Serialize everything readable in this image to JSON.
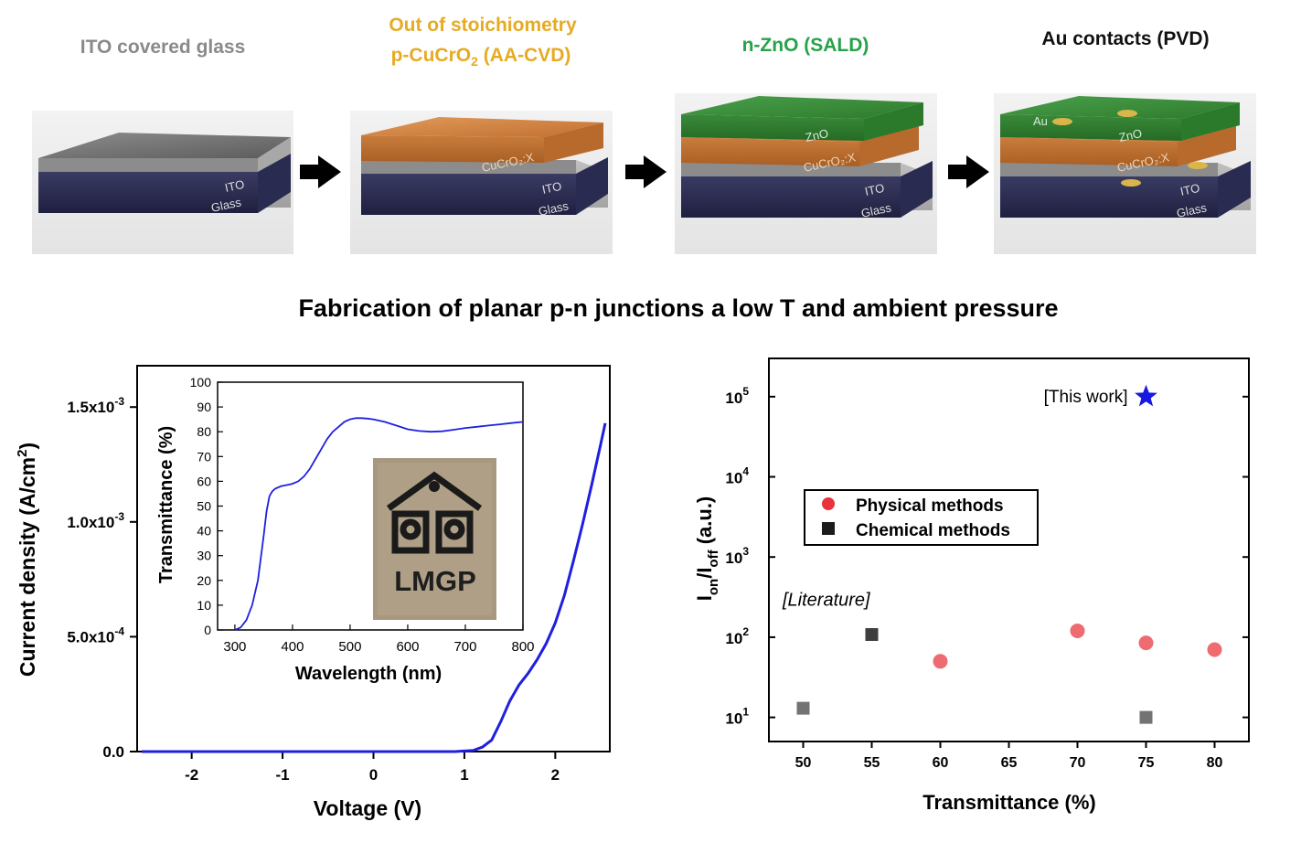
{
  "colors": {
    "ito_gray": "#8a8a8a",
    "cucro2_orange": "#e6ab24",
    "zno_green": "#27a24a",
    "au_black": "#111111",
    "curve_blue": "#1f1fe0",
    "star_blue": "#1818e0",
    "physical_red": "#e8323c",
    "chemical_square": "#1c1c1c",
    "literature_band_top": "#c9d3e7",
    "literature_band_bottom": "#ffffff"
  },
  "steps": [
    {
      "title_line1": "ITO covered glass",
      "title_line2": "",
      "layers": [
        "ITO",
        "Glass"
      ]
    },
    {
      "title_line1": "Out of stoichiometry",
      "title_line2": "p-CuCrO",
      "title_sub": "2",
      "title_tail": " (AA-CVD)",
      "layers": [
        "CuCrO₂:X",
        "ITO",
        "Glass"
      ]
    },
    {
      "title_line1": "n-ZnO (SALD)",
      "title_line2": "",
      "layers": [
        "ZnO",
        "CuCrO₂:X",
        "ITO",
        "Glass"
      ]
    },
    {
      "title_line1": "Au contacts (PVD)",
      "title_line2": "",
      "layers": [
        "Au",
        "ZnO",
        "CuCrO₂:X",
        "ITO",
        "Glass"
      ]
    }
  ],
  "caption": "Fabrication of planar p-n junctions a low T and ambient pressure",
  "chart_data": [
    {
      "type": "line",
      "xlabel": "Voltage (V)",
      "ylabel_main": "Current density (A/cm",
      "ylabel_sup": "2",
      "ylabel_tail": ")",
      "xlim": [
        -2.6,
        2.6
      ],
      "ylim": [
        0,
        0.00168
      ],
      "x_ticks": [
        -2,
        -1,
        0,
        1,
        2
      ],
      "x_tick_labels": [
        "-2",
        "-1",
        "0",
        "1",
        "2"
      ],
      "y_ticks": [
        0,
        0.0005,
        0.001,
        0.0015
      ],
      "y_tick_labels": [
        {
          "mant": "0.0",
          "exp": ""
        },
        {
          "mant": "5.0x10",
          "exp": "-4"
        },
        {
          "mant": "1.0x10",
          "exp": "-3"
        },
        {
          "mant": "1.5x10",
          "exp": "-3"
        }
      ],
      "series": [
        {
          "x": [
            -2.55,
            -1.5,
            -0.5,
            0.5,
            0.9,
            1.1,
            1.2,
            1.3,
            1.4,
            1.5,
            1.6,
            1.7,
            1.8,
            1.9,
            2.0,
            2.1,
            2.2,
            2.3,
            2.4,
            2.5,
            2.55
          ],
          "y": [
            0,
            0,
            0,
            0,
            0,
            5e-06,
            2e-05,
            5e-05,
            0.00013,
            0.00022,
            0.00029,
            0.00034,
            0.0004,
            0.00047,
            0.00056,
            0.00068,
            0.00083,
            0.00099,
            0.00116,
            0.00134,
            0.00143
          ]
        }
      ]
    },
    {
      "type": "line",
      "xlabel": "Wavelength (nm)",
      "ylabel": "Transmittance (%)",
      "xlim": [
        270,
        800
      ],
      "ylim": [
        0,
        100
      ],
      "x_ticks": [
        300,
        400,
        500,
        600,
        700,
        800
      ],
      "x_tick_labels": [
        "300",
        "400",
        "500",
        "600",
        "700",
        "800"
      ],
      "y_ticks": [
        0,
        10,
        20,
        30,
        40,
        50,
        60,
        70,
        80,
        90,
        100
      ],
      "y_tick_labels": [
        "0",
        "10",
        "20",
        "30",
        "40",
        "50",
        "60",
        "70",
        "80",
        "90",
        "100"
      ],
      "series": [
        {
          "x": [
            300,
            310,
            320,
            330,
            340,
            350,
            355,
            360,
            365,
            370,
            380,
            390,
            400,
            410,
            420,
            430,
            440,
            450,
            460,
            470,
            480,
            490,
            500,
            510,
            520,
            530,
            540,
            560,
            580,
            600,
            620,
            640,
            660,
            680,
            700,
            720,
            740,
            760,
            780,
            800
          ],
          "y": [
            0,
            1,
            4,
            10,
            20,
            38,
            48,
            54,
            56,
            57,
            58,
            58.5,
            59,
            60,
            62,
            65,
            69,
            73,
            77,
            80,
            82,
            84,
            85,
            85.5,
            85.5,
            85.3,
            85,
            84,
            82.5,
            81,
            80.3,
            80,
            80.2,
            80.8,
            81.5,
            82,
            82.5,
            83,
            83.5,
            84
          ]
        }
      ],
      "photo_label": "LMGP"
    },
    {
      "type": "scatter",
      "xlabel": "Transmittance (%)",
      "ylabel_main": "I",
      "ylabel_on": "on",
      "ylabel_slash": "/I",
      "ylabel_off": "off",
      "ylabel_tail": " (a.u.)",
      "y_scale": "log",
      "xlim": [
        47.5,
        82.5
      ],
      "ylim": [
        5,
        300000
      ],
      "x_ticks": [
        50,
        55,
        60,
        65,
        70,
        75,
        80
      ],
      "x_tick_labels": [
        "50",
        "55",
        "60",
        "65",
        "70",
        "75",
        "80"
      ],
      "y_ticks": [
        10,
        100,
        1000,
        10000,
        100000
      ],
      "y_tick_labels": [
        {
          "base": "10",
          "exp": "1"
        },
        {
          "base": "10",
          "exp": "2"
        },
        {
          "base": "10",
          "exp": "3"
        },
        {
          "base": "10",
          "exp": "4"
        },
        {
          "base": "10",
          "exp": "5"
        }
      ],
      "literature_band": {
        "ymin": 5,
        "ymax": 200,
        "label": "[Literature]"
      },
      "legend_placement": "center-left",
      "series": [
        {
          "name": "Physical methods",
          "marker": "circle",
          "x": [
            60,
            70,
            75,
            80
          ],
          "y": [
            50,
            120,
            85,
            70
          ]
        },
        {
          "name": "Chemical methods",
          "marker": "square",
          "x": [
            50,
            55,
            75
          ],
          "y": [
            13,
            108,
            10
          ]
        },
        {
          "name": "[This work]",
          "marker": "star",
          "x": [
            75
          ],
          "y": [
            100000
          ]
        }
      ]
    }
  ]
}
